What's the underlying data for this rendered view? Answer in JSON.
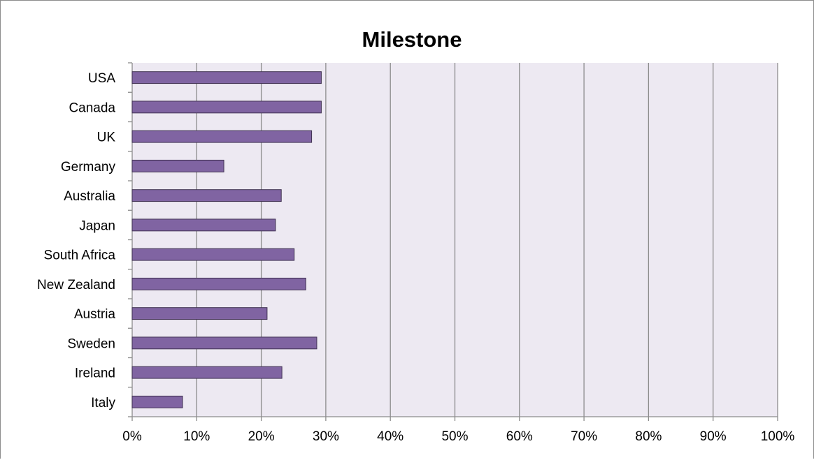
{
  "chart_data": {
    "type": "bar",
    "orientation": "horizontal",
    "title": "Milestone",
    "xlabel": "",
    "ylabel": "",
    "categories": [
      "USA",
      "Canada",
      "UK",
      "Germany",
      "Australia",
      "Japan",
      "South Africa",
      "New Zealand",
      "Austria",
      "Sweden",
      "Ireland",
      "Italy"
    ],
    "series": [
      {
        "values": [
          29.3,
          29.3,
          27.8,
          14.2,
          23.1,
          22.2,
          25.1,
          26.9,
          20.9,
          28.6,
          23.2,
          7.8
        ]
      }
    ],
    "xlim": [
      0,
      100
    ],
    "x_ticks": [
      "0%",
      "10%",
      "20%",
      "30%",
      "40%",
      "50%",
      "60%",
      "70%",
      "80%",
      "90%",
      "100%"
    ],
    "grid": "vertical",
    "legend": "none",
    "colors": {
      "bar_fill": "#8064a2",
      "bar_stroke": "#3f3151",
      "plot_background": "#ede9f2",
      "gridline": "#8c8c8c"
    }
  }
}
